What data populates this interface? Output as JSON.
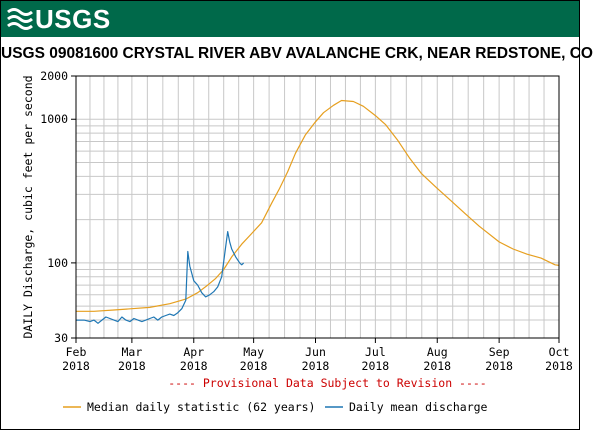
{
  "banner": {
    "logo_text": "USGS",
    "color": "#00694a"
  },
  "chart_data": {
    "type": "line",
    "title": "USGS 09081600 CRYSTAL RIVER ABV AVALANCHE CRK, NEAR REDSTONE, CO",
    "ylabel": "DAILY Discharge, cubic feet per second",
    "yscale": "log",
    "ylim": [
      30,
      2000
    ],
    "yticks": [
      30,
      100,
      1000,
      2000
    ],
    "xlim": [
      "2018-02-01",
      "2018-10-01"
    ],
    "xticks": [
      {
        "date": "2018-02-01",
        "month": "Feb",
        "year": "2018"
      },
      {
        "date": "2018-03-01",
        "month": "Mar",
        "year": "2018"
      },
      {
        "date": "2018-04-01",
        "month": "Apr",
        "year": "2018"
      },
      {
        "date": "2018-05-01",
        "month": "May",
        "year": "2018"
      },
      {
        "date": "2018-06-01",
        "month": "Jun",
        "year": "2018"
      },
      {
        "date": "2018-07-01",
        "month": "Jul",
        "year": "2018"
      },
      {
        "date": "2018-08-01",
        "month": "Aug",
        "year": "2018"
      },
      {
        "date": "2018-09-01",
        "month": "Sep",
        "year": "2018"
      },
      {
        "date": "2018-10-01",
        "month": "Oct",
        "year": "2018"
      }
    ],
    "grid": true,
    "notice": "---- Provisional Data Subject to Revision ----",
    "notice_color": "#cc0000",
    "series": [
      {
        "name": "Median daily statistic (62 years)",
        "color": "#e69f1f",
        "points": [
          [
            "2018-02-01",
            46
          ],
          [
            "2018-02-10",
            46
          ],
          [
            "2018-02-20",
            47
          ],
          [
            "2018-03-01",
            48
          ],
          [
            "2018-03-10",
            49
          ],
          [
            "2018-03-20",
            52
          ],
          [
            "2018-03-28",
            56
          ],
          [
            "2018-04-03",
            62
          ],
          [
            "2018-04-08",
            70
          ],
          [
            "2018-04-12",
            78
          ],
          [
            "2018-04-16",
            90
          ],
          [
            "2018-04-20",
            110
          ],
          [
            "2018-04-25",
            135
          ],
          [
            "2018-04-30",
            160
          ],
          [
            "2018-05-05",
            190
          ],
          [
            "2018-05-10",
            260
          ],
          [
            "2018-05-14",
            330
          ],
          [
            "2018-05-18",
            430
          ],
          [
            "2018-05-22",
            580
          ],
          [
            "2018-05-27",
            780
          ],
          [
            "2018-06-01",
            960
          ],
          [
            "2018-06-05",
            1110
          ],
          [
            "2018-06-10",
            1250
          ],
          [
            "2018-06-14",
            1350
          ],
          [
            "2018-06-20",
            1330
          ],
          [
            "2018-06-25",
            1230
          ],
          [
            "2018-07-01",
            1060
          ],
          [
            "2018-07-06",
            920
          ],
          [
            "2018-07-12",
            720
          ],
          [
            "2018-07-18",
            540
          ],
          [
            "2018-07-24",
            420
          ],
          [
            "2018-08-01",
            330
          ],
          [
            "2018-08-08",
            270
          ],
          [
            "2018-08-15",
            220
          ],
          [
            "2018-08-22",
            180
          ],
          [
            "2018-09-01",
            140
          ],
          [
            "2018-09-08",
            125
          ],
          [
            "2018-09-15",
            115
          ],
          [
            "2018-09-22",
            108
          ],
          [
            "2018-09-29",
            97
          ],
          [
            "2018-10-01",
            96
          ]
        ]
      },
      {
        "name": "Daily mean discharge",
        "color": "#1f77b4",
        "points": [
          [
            "2018-02-01",
            40
          ],
          [
            "2018-02-05",
            40
          ],
          [
            "2018-02-08",
            39
          ],
          [
            "2018-02-10",
            40
          ],
          [
            "2018-02-12",
            38
          ],
          [
            "2018-02-14",
            40
          ],
          [
            "2018-02-16",
            42
          ],
          [
            "2018-02-18",
            41
          ],
          [
            "2018-02-20",
            40
          ],
          [
            "2018-02-22",
            39
          ],
          [
            "2018-02-24",
            42
          ],
          [
            "2018-02-26",
            40
          ],
          [
            "2018-02-28",
            39
          ],
          [
            "2018-03-02",
            41
          ],
          [
            "2018-03-04",
            40
          ],
          [
            "2018-03-06",
            39
          ],
          [
            "2018-03-08",
            40
          ],
          [
            "2018-03-10",
            41
          ],
          [
            "2018-03-12",
            42
          ],
          [
            "2018-03-14",
            40
          ],
          [
            "2018-03-16",
            42
          ],
          [
            "2018-03-18",
            43
          ],
          [
            "2018-03-20",
            44
          ],
          [
            "2018-03-22",
            43
          ],
          [
            "2018-03-24",
            45
          ],
          [
            "2018-03-26",
            48
          ],
          [
            "2018-03-28",
            55
          ],
          [
            "2018-03-29",
            120
          ],
          [
            "2018-03-30",
            95
          ],
          [
            "2018-04-01",
            75
          ],
          [
            "2018-04-03",
            70
          ],
          [
            "2018-04-05",
            62
          ],
          [
            "2018-04-07",
            58
          ],
          [
            "2018-04-09",
            60
          ],
          [
            "2018-04-11",
            63
          ],
          [
            "2018-04-13",
            68
          ],
          [
            "2018-04-15",
            80
          ],
          [
            "2018-04-17",
            130
          ],
          [
            "2018-04-18",
            165
          ],
          [
            "2018-04-19",
            140
          ],
          [
            "2018-04-20",
            125
          ],
          [
            "2018-04-22",
            110
          ],
          [
            "2018-04-24",
            100
          ],
          [
            "2018-04-25",
            97
          ],
          [
            "2018-04-26",
            100
          ]
        ]
      }
    ]
  }
}
